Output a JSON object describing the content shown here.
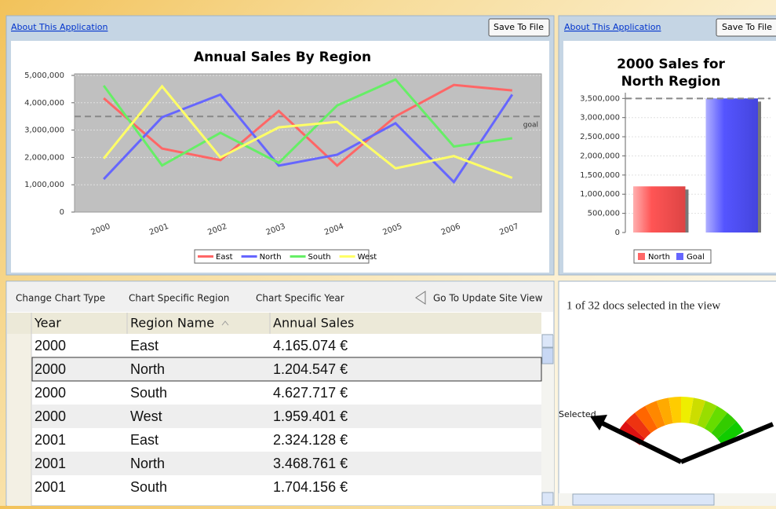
{
  "panel": {
    "about_link": "About This Application",
    "save_button": "Save To File"
  },
  "chart_data": [
    {
      "type": "line",
      "title": "Annual Sales By Region",
      "categories": [
        "2000",
        "2001",
        "2002",
        "2003",
        "2004",
        "2005",
        "2006",
        "2007"
      ],
      "series": [
        {
          "name": "East",
          "color": "#ff6666",
          "values": [
            4165074,
            2324128,
            1900000,
            3700000,
            1700000,
            3500000,
            4650000,
            4450000
          ]
        },
        {
          "name": "North",
          "color": "#6666ff",
          "values": [
            1204547,
            3468761,
            4300000,
            1700000,
            2100000,
            3250000,
            1100000,
            4300000
          ]
        },
        {
          "name": "South",
          "color": "#66ee66",
          "values": [
            4627717,
            1704156,
            2900000,
            1800000,
            3900000,
            4850000,
            2400000,
            2700000
          ]
        },
        {
          "name": "West",
          "color": "#ffff66",
          "values": [
            1959401,
            4600000,
            2000000,
            3100000,
            3300000,
            1600000,
            2050000,
            1250000
          ]
        }
      ],
      "reference_line": {
        "value": 3500000,
        "label": "goal"
      },
      "ylim": [
        0,
        5000000
      ],
      "yticks": [
        0,
        {
          "value": 1000000,
          "label": "1,000,000"
        },
        {
          "value": 2000000,
          "label": "2,000,000"
        },
        {
          "value": 3000000,
          "label": "3,000,000"
        },
        {
          "value": 4000000,
          "label": "4,000,000"
        },
        {
          "value": 5000000,
          "label": "5,000,000"
        }
      ],
      "grid": true,
      "legend": "bottom"
    },
    {
      "type": "bar",
      "title": "2000 Sales for North Region",
      "categories": [
        "North",
        "Goal"
      ],
      "values": [
        1204547,
        3500000
      ],
      "colors": [
        "#ff6666",
        "#6666ff"
      ],
      "reference_line": {
        "value": 3500000
      },
      "ylim": [
        0,
        3650000
      ],
      "yticks": [
        0,
        {
          "value": 500000,
          "label": "500,000"
        },
        {
          "value": 1000000,
          "label": "1,000,000"
        },
        {
          "value": 1500000,
          "label": "1,500,000"
        },
        {
          "value": 2000000,
          "label": "2,000,000"
        },
        {
          "value": 2500000,
          "label": "2,500,000"
        },
        {
          "value": 3000000,
          "label": "3,000,000"
        },
        {
          "value": 3500000,
          "label": "3,500,000"
        }
      ],
      "grid": true,
      "legend": "bottom"
    }
  ],
  "toolbar": [
    "Change Chart Type",
    "Chart Specific Region",
    "Chart Specific Year",
    "Go To Update Site View"
  ],
  "table": {
    "columns": [
      "Year",
      "Region Name",
      "Annual Sales"
    ],
    "rows": [
      [
        "2000",
        "East",
        "4.165.074 €"
      ],
      [
        "2000",
        "North",
        "1.204.547 €"
      ],
      [
        "2000",
        "South",
        "4.627.717 €"
      ],
      [
        "2000",
        "West",
        "1.959.401 €"
      ],
      [
        "2001",
        "East",
        "2.324.128 €"
      ],
      [
        "2001",
        "North",
        "3.468.761 €"
      ],
      [
        "2001",
        "South",
        "1.704.156 €"
      ]
    ]
  },
  "gauge": {
    "status": "1 of 32 docs selected in the view",
    "label": "Selected"
  }
}
